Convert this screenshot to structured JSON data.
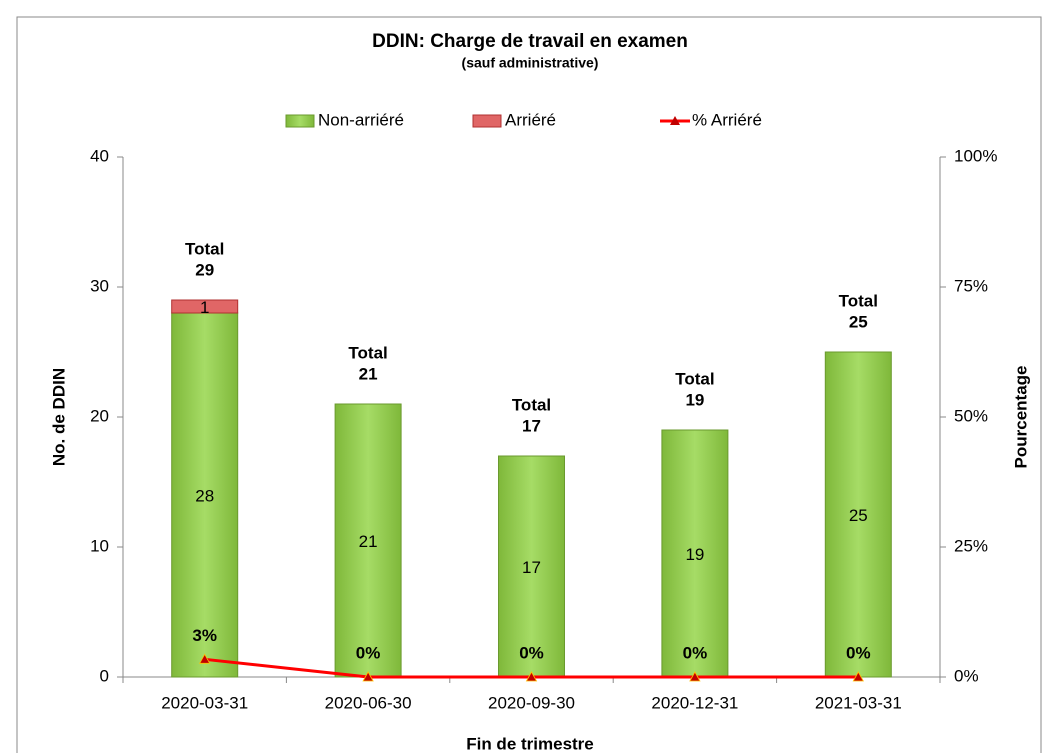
{
  "chart_data": {
    "type": "bar",
    "stacked": true,
    "title": "DDIN:  Charge de travail en examen",
    "subtitle": "(sauf administrative)",
    "xlabel": "Fin de trimestre",
    "ylabel": "No. de DDIN",
    "y2label": "Pourcentage",
    "categories": [
      "2020-03-31",
      "2020-06-30",
      "2020-09-30",
      "2020-12-31",
      "2021-03-31"
    ],
    "series": [
      {
        "name": "Non-arriéré",
        "color": "#92d050",
        "values": [
          28,
          21,
          17,
          19,
          25
        ]
      },
      {
        "name": "Arriéré",
        "color": "#e06666",
        "values": [
          1,
          0,
          0,
          0,
          0
        ]
      },
      {
        "name": "% Arriéré",
        "type": "line",
        "axis": "y2",
        "color": "#ff0000",
        "values": [
          3.4,
          0,
          0,
          0,
          0
        ],
        "value_labels": [
          "3%",
          "0%",
          "0%",
          "0%",
          "0%"
        ]
      }
    ],
    "total_label": "Total",
    "totals": [
      29,
      21,
      17,
      19,
      25
    ],
    "ylim": [
      0,
      40
    ],
    "yticks": [
      0,
      10,
      20,
      30,
      40
    ],
    "y2lim": [
      0,
      100
    ],
    "y2ticks": [
      {
        "value": 0,
        "label": "0%"
      },
      {
        "value": 25,
        "label": "25%"
      },
      {
        "value": 50,
        "label": "50%"
      },
      {
        "value": 75,
        "label": "75%"
      },
      {
        "value": 100,
        "label": "100%"
      }
    ],
    "legend": "top"
  }
}
